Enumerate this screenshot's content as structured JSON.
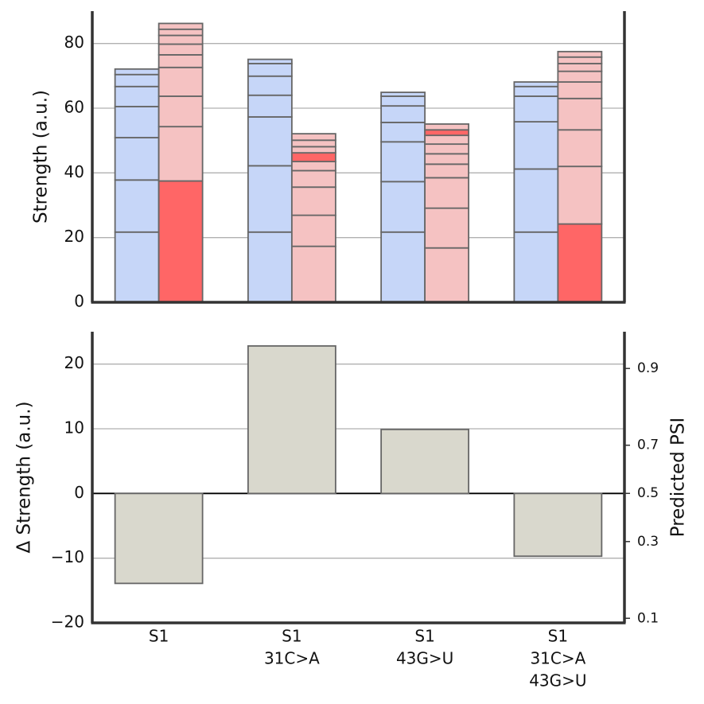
{
  "chart_data": [
    {
      "type": "stacked_bar",
      "ylabel": "Strength (a.u.)",
      "ylim": [
        0,
        90
      ],
      "yticks": [
        0,
        20,
        40,
        60,
        80
      ],
      "grid": true,
      "edge_color": "#666666",
      "groups": [
        {
          "stacks": [
            {
              "values": [
                21.7,
                16.1,
                13.1,
                9.6,
                6.2,
                3.7,
                1.7
              ],
              "colors": [
                "#c6d6f8",
                "#c6d6f8",
                "#c6d6f8",
                "#c6d6f8",
                "#c6d6f8",
                "#c6d6f8",
                "#c6d6f8"
              ]
            },
            {
              "values": [
                37.5,
                16.8,
                9.4,
                8.9,
                3.9,
                3.3,
                2.7,
                1.9,
                1.8
              ],
              "colors": [
                "#ff6666",
                "#f5c2c2",
                "#f5c2c2",
                "#f5c2c2",
                "#f5c2c2",
                "#f5c2c2",
                "#f5c2c2",
                "#f5c2c2",
                "#f5c2c2"
              ]
            }
          ]
        },
        {
          "stacks": [
            {
              "values": [
                21.7,
                20.5,
                15.1,
                6.7,
                5.9,
                3.9,
                1.3
              ],
              "colors": [
                "#c6d6f8",
                "#c6d6f8",
                "#c6d6f8",
                "#c6d6f8",
                "#c6d6f8",
                "#c6d6f8",
                "#c6d6f8"
              ]
            },
            {
              "values": [
                17.3,
                9.6,
                8.7,
                5.1,
                2.8,
                2.7,
                1.9,
                2.0,
                2.0
              ],
              "colors": [
                "#f5c2c2",
                "#f5c2c2",
                "#f5c2c2",
                "#f5c2c2",
                "#f5c2c2",
                "#ff6666",
                "#f5c2c2",
                "#f5c2c2",
                "#f5c2c2"
              ]
            }
          ]
        },
        {
          "stacks": [
            {
              "values": [
                21.7,
                15.6,
                12.3,
                6.0,
                5.1,
                3.0,
                1.2
              ],
              "colors": [
                "#c6d6f8",
                "#c6d6f8",
                "#c6d6f8",
                "#c6d6f8",
                "#c6d6f8",
                "#c6d6f8",
                "#c6d6f8"
              ]
            },
            {
              "values": [
                16.8,
                12.3,
                9.4,
                4.2,
                3.2,
                3.0,
                2.7,
                1.7,
                1.8
              ],
              "colors": [
                "#f5c2c2",
                "#f5c2c2",
                "#f5c2c2",
                "#f5c2c2",
                "#f5c2c2",
                "#f5c2c2",
                "#f5c2c2",
                "#ff6666",
                "#f5c2c2"
              ]
            }
          ]
        },
        {
          "stacks": [
            {
              "values": [
                21.7,
                19.5,
                14.6,
                7.9,
                3.0,
                1.4
              ],
              "colors": [
                "#c6d6f8",
                "#c6d6f8",
                "#c6d6f8",
                "#c6d6f8",
                "#c6d6f8",
                "#c6d6f8"
              ]
            },
            {
              "values": [
                24.2,
                17.8,
                11.3,
                9.7,
                5.1,
                3.3,
                2.4,
                2.0,
                1.7
              ],
              "colors": [
                "#ff6666",
                "#f5c2c2",
                "#f5c2c2",
                "#f5c2c2",
                "#f5c2c2",
                "#f5c2c2",
                "#f5c2c2",
                "#f5c2c2",
                "#f5c2c2"
              ]
            }
          ]
        }
      ]
    },
    {
      "type": "bar",
      "ylabel": "Δ Strength (a.u.)",
      "y2label": "Predicted PSI",
      "categories": [
        [
          "S1"
        ],
        [
          "S1",
          "31C>A"
        ],
        [
          "S1",
          "43G>U"
        ],
        [
          "S1",
          "31C>A",
          "43G>U"
        ]
      ],
      "values": [
        -13.9,
        22.8,
        9.9,
        -9.7
      ],
      "color": "#d9d8cd",
      "edge_color": "#666666",
      "ylim": [
        -20,
        25
      ],
      "yticks": [
        {
          "value": -20,
          "label": "−20"
        },
        {
          "value": -10,
          "label": "−10"
        },
        0,
        10,
        20
      ],
      "grid": true,
      "y2scale": "logit",
      "y2lim": [
        0.093,
        0.945
      ],
      "y2ticks": [
        0.1,
        0.3,
        0.5,
        0.7,
        0.9
      ]
    }
  ]
}
